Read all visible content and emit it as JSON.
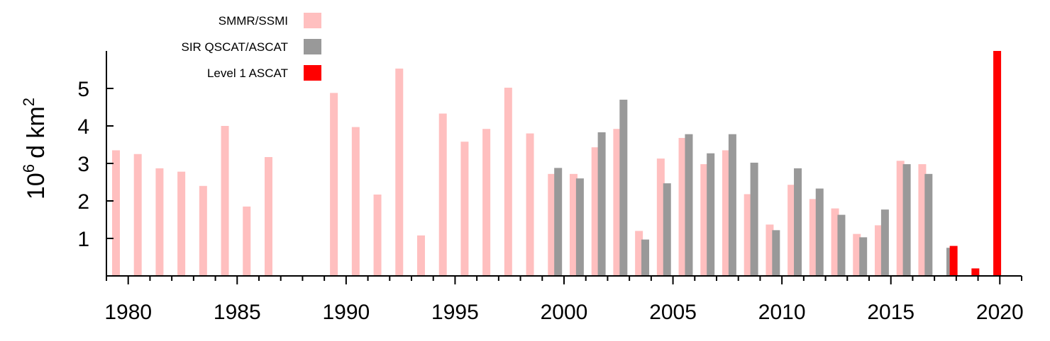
{
  "chart_data": {
    "type": "bar",
    "ylabel_base": "10",
    "ylabel_exp": "6",
    "ylabel_unit": "d km",
    "ylabel_unit_exp": "2",
    "xlim": [
      1979,
      2021
    ],
    "ylim": [
      0,
      6
    ],
    "x_tick_labels": [
      "1980",
      "1985",
      "1990",
      "1995",
      "2000",
      "2005",
      "2010",
      "2015",
      "2020"
    ],
    "y_tick_labels": [
      "1",
      "2",
      "3",
      "4",
      "5"
    ],
    "legend_position": "top-left",
    "series": [
      {
        "name": "SMMR/SSMI",
        "color": "#ffbfbf",
        "x": [
          1979,
          1980,
          1981,
          1982,
          1983,
          1984,
          1985,
          1986,
          1989,
          1990,
          1991,
          1992,
          1993,
          1994,
          1995,
          1996,
          1997,
          1998,
          1999,
          2000,
          2001,
          2002,
          2003,
          2004,
          2005,
          2006,
          2007,
          2008,
          2009,
          2010,
          2011,
          2012,
          2013,
          2014,
          2015,
          2016
        ],
        "values": [
          3.35,
          3.25,
          2.87,
          2.78,
          2.4,
          4.0,
          1.85,
          3.17,
          4.88,
          3.97,
          2.17,
          5.53,
          1.08,
          4.33,
          3.58,
          3.92,
          5.02,
          3.8,
          2.72,
          2.72,
          3.43,
          3.92,
          1.2,
          3.13,
          3.68,
          2.98,
          3.35,
          2.18,
          1.37,
          2.43,
          2.05,
          1.8,
          1.12,
          1.35,
          3.07,
          2.98
        ]
      },
      {
        "name": "SIR QSCAT/ASCAT",
        "color": "#999999",
        "x": [
          1999,
          2000,
          2001,
          2002,
          2003,
          2004,
          2005,
          2006,
          2007,
          2008,
          2009,
          2010,
          2011,
          2012,
          2013,
          2014,
          2015,
          2016,
          2017
        ],
        "values": [
          2.88,
          2.6,
          3.83,
          4.7,
          0.97,
          2.47,
          3.78,
          3.27,
          3.78,
          3.02,
          1.22,
          2.87,
          2.33,
          1.63,
          1.03,
          1.77,
          2.98,
          2.72,
          0.75
        ]
      },
      {
        "name": "Level 1 ASCAT",
        "color": "#ff0000",
        "x": [
          2017,
          2018,
          2019
        ],
        "values": [
          0.8,
          0.2,
          6.0
        ]
      }
    ]
  }
}
